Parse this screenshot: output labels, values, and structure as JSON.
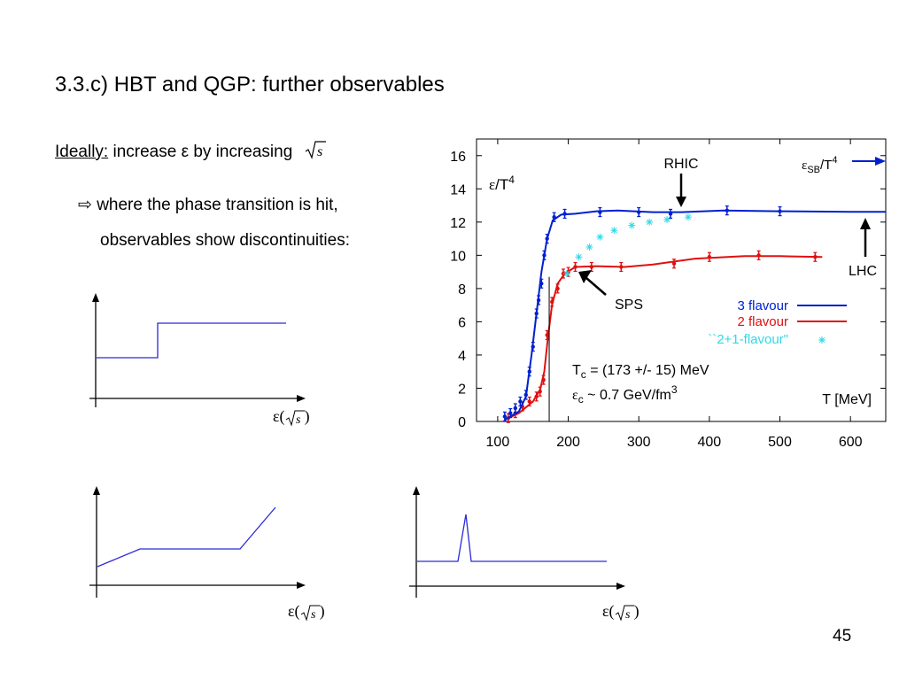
{
  "slide": {
    "title": "3.3.c) HBT and QGP: further observables",
    "ideally_label": "Ideally:",
    "ideally_rest": " increase ε by increasing ",
    "sqrt_symbol": "s",
    "bullet_line1": "where the phase transition is hit,",
    "bullet_line2": "observables show discontinuities:",
    "page_number": "45"
  },
  "sketches": {
    "x_label_eps": "ε(",
    "x_label_s": "s",
    "x_label_close": ")"
  },
  "chart_data": {
    "type": "scatter",
    "y_axis_label": "ε/T",
    "y_axis_label_sup": "4",
    "x_axis_label": "T [MeV]",
    "xlim": [
      70,
      650
    ],
    "ylim": [
      0,
      17
    ],
    "x_ticks": [
      100,
      200,
      300,
      400,
      500,
      600
    ],
    "y_ticks": [
      0,
      2,
      4,
      6,
      8,
      10,
      12,
      14,
      16
    ],
    "colors": {
      "three_flavour": "#0020d0",
      "two_flavour": "#e01010",
      "two_plus_one": "#30d8e8"
    },
    "legend": {
      "position": "inside-right",
      "entries": [
        "3 flavour",
        "2 flavour",
        "``2+1-flavour\""
      ]
    },
    "annotations": {
      "rhic": "RHIC",
      "lhc": "LHC",
      "sps": "SPS",
      "eps_sb": "ε",
      "eps_sb_sub": "SB",
      "eps_sb_rest": "/T",
      "eps_sb_sup": "4",
      "tc_prefix": "T",
      "tc_sub": "c",
      "tc_rest": " = (173 +/- 15) MeV",
      "epsc_prefix": "ε",
      "epsc_sub": "c",
      "epsc_rest": " ~ 0.7 GeV/fm",
      "epsc_sup": "3"
    },
    "tc_line_x": 173,
    "series": [
      {
        "name": "3 flavour",
        "points": [
          [
            110,
            0.3
          ],
          [
            118,
            0.5
          ],
          [
            125,
            0.8
          ],
          [
            132,
            1.2
          ],
          [
            140,
            1.6
          ],
          [
            145,
            3.0
          ],
          [
            150,
            4.5
          ],
          [
            155,
            6.5
          ],
          [
            158,
            7.3
          ],
          [
            162,
            8.3
          ],
          [
            166,
            10.0
          ],
          [
            170,
            11.0
          ],
          [
            180,
            12.3
          ],
          [
            195,
            12.5
          ],
          [
            245,
            12.6
          ],
          [
            300,
            12.6
          ],
          [
            345,
            12.5
          ],
          [
            425,
            12.7
          ],
          [
            500,
            12.65
          ]
        ],
        "curve": [
          [
            110,
            0.1
          ],
          [
            130,
            0.6
          ],
          [
            140,
            1.5
          ],
          [
            148,
            4.0
          ],
          [
            155,
            6.5
          ],
          [
            162,
            9.0
          ],
          [
            170,
            11.0
          ],
          [
            178,
            12.1
          ],
          [
            190,
            12.45
          ],
          [
            210,
            12.5
          ],
          [
            240,
            12.65
          ],
          [
            270,
            12.7
          ],
          [
            320,
            12.6
          ],
          [
            360,
            12.6
          ],
          [
            420,
            12.7
          ],
          [
            500,
            12.65
          ],
          [
            600,
            12.62
          ],
          [
            650,
            12.62
          ]
        ]
      },
      {
        "name": "2 flavour",
        "points": [
          [
            115,
            0.2
          ],
          [
            125,
            0.5
          ],
          [
            135,
            0.9
          ],
          [
            145,
            1.2
          ],
          [
            155,
            1.5
          ],
          [
            160,
            1.8
          ],
          [
            165,
            2.5
          ],
          [
            170,
            5.2
          ],
          [
            177,
            7.2
          ],
          [
            185,
            8.0
          ],
          [
            193,
            8.9
          ],
          [
            200,
            9.0
          ],
          [
            210,
            9.3
          ],
          [
            233,
            9.3
          ],
          [
            275,
            9.3
          ],
          [
            350,
            9.5
          ],
          [
            400,
            9.9
          ],
          [
            470,
            10.0
          ],
          [
            550,
            9.9
          ]
        ],
        "curve": [
          [
            110,
            0.1
          ],
          [
            130,
            0.5
          ],
          [
            150,
            1.2
          ],
          [
            160,
            1.9
          ],
          [
            166,
            3.0
          ],
          [
            171,
            5.0
          ],
          [
            177,
            7.0
          ],
          [
            185,
            8.3
          ],
          [
            195,
            8.9
          ],
          [
            210,
            9.3
          ],
          [
            240,
            9.35
          ],
          [
            280,
            9.3
          ],
          [
            320,
            9.45
          ],
          [
            380,
            9.8
          ],
          [
            450,
            9.95
          ],
          [
            500,
            9.95
          ],
          [
            560,
            9.9
          ]
        ]
      },
      {
        "name": "``2+1-flavour\"",
        "points": [
          [
            198,
            8.9
          ],
          [
            215,
            9.9
          ],
          [
            230,
            10.5
          ],
          [
            245,
            11.1
          ],
          [
            265,
            11.5
          ],
          [
            290,
            11.8
          ],
          [
            315,
            12.0
          ],
          [
            340,
            12.15
          ],
          [
            370,
            12.3
          ]
        ]
      }
    ]
  }
}
